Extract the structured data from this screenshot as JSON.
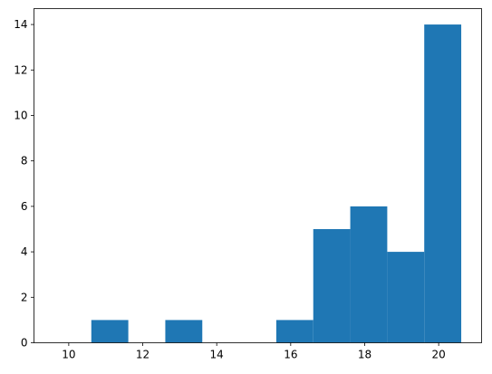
{
  "chart_data": {
    "type": "histogram",
    "bins": [
      9.61,
      10.61,
      11.61,
      12.61,
      13.61,
      14.61,
      15.61,
      16.61,
      17.61,
      18.61,
      19.61,
      20.61
    ],
    "counts": [
      0,
      1,
      0,
      1,
      0,
      0,
      1,
      5,
      6,
      4,
      14
    ],
    "color": "#1f77b4",
    "xlim": [
      9.06,
      21.16
    ],
    "ylim": [
      0,
      14.7
    ],
    "xticks": [
      10,
      12,
      14,
      16,
      18,
      20
    ],
    "yticks": [
      0,
      2,
      4,
      6,
      8,
      10,
      12,
      14
    ],
    "grid": false
  }
}
